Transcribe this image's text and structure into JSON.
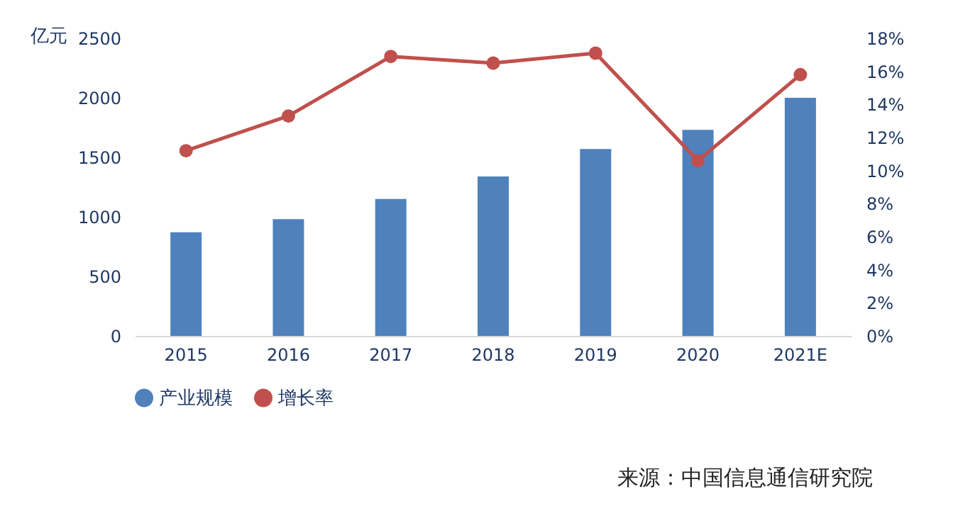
{
  "chart_data": {
    "type": "bar",
    "categories": [
      "2015",
      "2016",
      "2017",
      "2018",
      "2019",
      "2020",
      "2021E"
    ],
    "series": [
      {
        "name": "产业规模",
        "color": "#4f81bd",
        "values": [
          870,
          980,
          1150,
          1340,
          1570,
          1730,
          2000
        ]
      },
      {
        "name": "增长率",
        "type": "line",
        "axis": "y2",
        "color": "#c0504d",
        "marker": "circle",
        "values": [
          11.2,
          13.3,
          16.9,
          16.5,
          17.1,
          10.6,
          15.8
        ]
      }
    ],
    "ylabel": "亿元",
    "ylim": [
      0,
      2500
    ],
    "yticks": [
      0,
      500,
      1000,
      1500,
      2000,
      2500
    ],
    "y2lim": [
      0,
      18
    ],
    "y2ticks": [
      {
        "value": 0,
        "label": "0%"
      },
      {
        "value": 2,
        "label": "2%"
      },
      {
        "value": 4,
        "label": "4%"
      },
      {
        "value": 6,
        "label": "6%"
      },
      {
        "value": 8,
        "label": "8%"
      },
      {
        "value": 10,
        "label": "10%"
      },
      {
        "value": 12,
        "label": "12%"
      },
      {
        "value": 14,
        "label": "14%"
      },
      {
        "value": 16,
        "label": "16%"
      },
      {
        "value": 18,
        "label": "18%"
      }
    ],
    "legend": "bottom",
    "annotations": [
      "来源：中国信息通信研究院"
    ]
  }
}
